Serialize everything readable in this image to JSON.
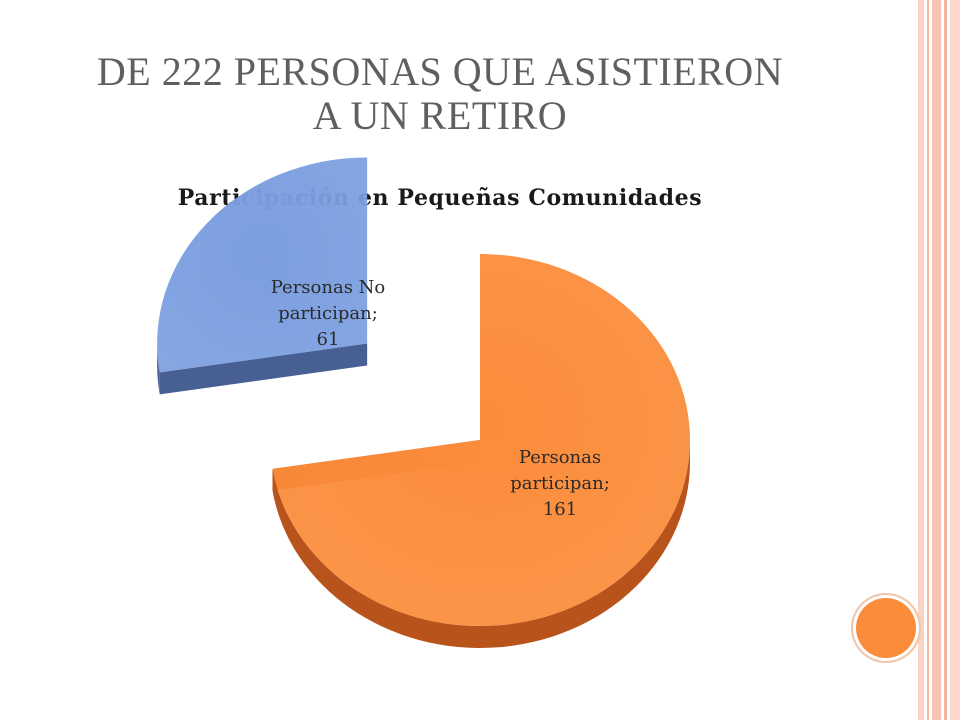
{
  "slide": {
    "title_line1": "DE 222 PERSONAS QUE ASISTIERON",
    "title_line2": "A UN RETIRO"
  },
  "colors": {
    "accent_orange": "#fb8c3a",
    "orange_side": "#b8531b",
    "blue_slice": "#7b9ee0",
    "blue_side": "#485f93",
    "stripe_pink": "#f8c4b3"
  },
  "chart_data": {
    "type": "pie",
    "title": "Participación en Pequeñas Comunidades",
    "slices": [
      {
        "name": "Personas participan",
        "value": 161,
        "label_lines": [
          "Personas",
          "participan;",
          "161"
        ],
        "color": "#fb8c3a",
        "side_color": "#b8531b",
        "exploded": false
      },
      {
        "name": "Personas No participan",
        "value": 61,
        "label_lines": [
          "Personas No",
          "participan;",
          "61"
        ],
        "color": "#7b9ee0",
        "side_color": "#485f93",
        "exploded": true
      }
    ],
    "total": 222,
    "style": "3d-exploded"
  }
}
